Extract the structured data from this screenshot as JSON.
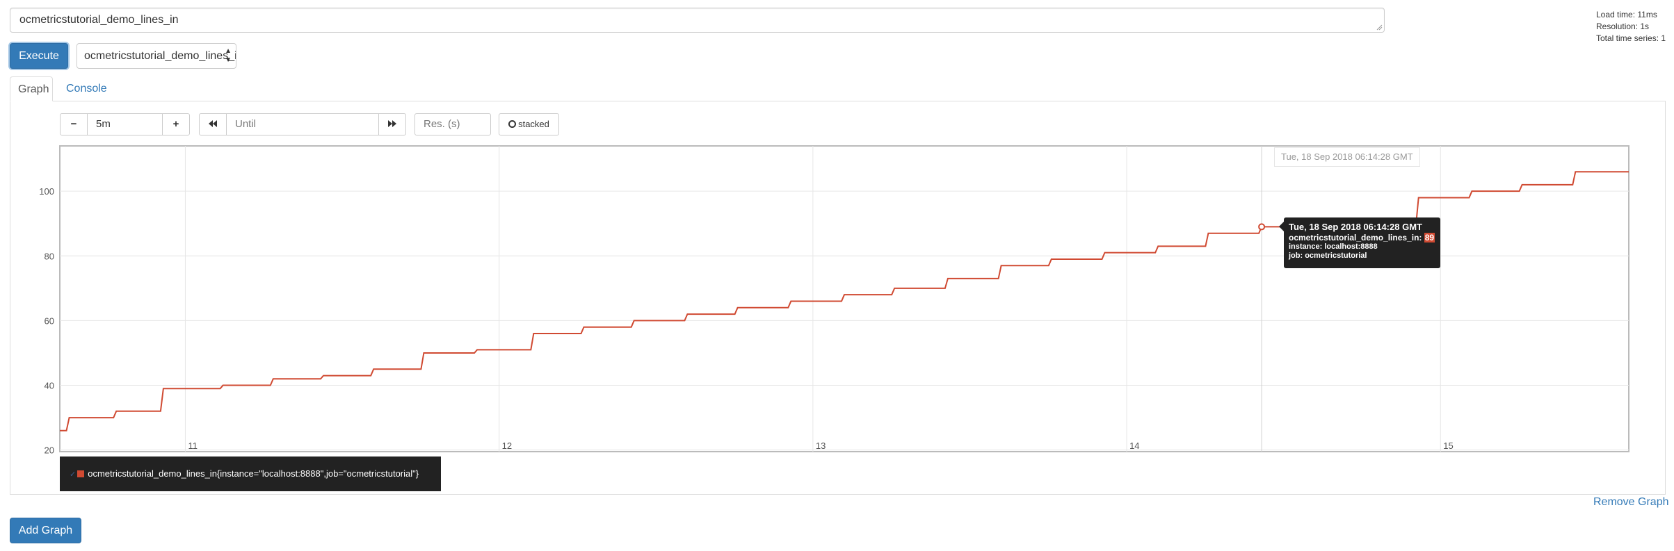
{
  "query": {
    "expression": "ocmetricstutorial_demo_lines_in"
  },
  "stats": {
    "load_time": "Load time: 11ms",
    "resolution": "Resolution: 1s",
    "total_series": "Total time series: 1"
  },
  "toolbar": {
    "execute_label": "Execute",
    "metric_select_value": "ocmetricstutorial_demo_lines_in"
  },
  "tabs": [
    {
      "label": "Graph",
      "active": true
    },
    {
      "label": "Console",
      "active": false
    }
  ],
  "graph_controls": {
    "range_minus": "−",
    "range_value": "5m",
    "range_plus": "+",
    "until_placeholder": "Until",
    "res_placeholder": "Res. (s)",
    "stacked_label": "stacked"
  },
  "hover": {
    "x_label": "Tue, 18 Sep 2018 06:14:28 GMT",
    "tooltip_time": "Tue, 18 Sep 2018 06:14:28 GMT",
    "tooltip_series": "ocmetricstutorial_demo_lines_in:",
    "tooltip_value": "89",
    "tooltip_instance": "instance: localhost:8888",
    "tooltip_job": "job: ocmetricstutorial"
  },
  "legend": {
    "label": "ocmetricstutorial_demo_lines_in{instance=\"localhost:8888\",job=\"ocmetricstutorial\"}"
  },
  "links": {
    "remove_graph": "Remove Graph"
  },
  "footer": {
    "add_graph_label": "Add Graph"
  },
  "colors": {
    "series": "#d04a32",
    "primary": "#337ab7",
    "tooltip_bg": "#222222"
  },
  "chart_data": {
    "type": "line",
    "x_ticks": [
      "11",
      "12",
      "13",
      "14",
      "15"
    ],
    "y_ticks": [
      20,
      40,
      60,
      80,
      100
    ],
    "ylim": [
      19.5,
      114
    ],
    "xlim": [
      10.6,
      15.6
    ],
    "grid": true,
    "series": [
      {
        "name": "ocmetricstutorial_demo_lines_in{instance=\"localhost:8888\",job=\"ocmetricstutorial\"}",
        "color": "#d04a32",
        "points": [
          [
            10.6,
            26
          ],
          [
            10.63,
            30
          ],
          [
            10.78,
            32
          ],
          [
            10.93,
            39
          ],
          [
            11.12,
            40
          ],
          [
            11.28,
            42
          ],
          [
            11.44,
            43
          ],
          [
            11.6,
            45
          ],
          [
            11.76,
            50
          ],
          [
            11.93,
            51
          ],
          [
            12.11,
            56
          ],
          [
            12.27,
            58
          ],
          [
            12.43,
            60
          ],
          [
            12.6,
            62
          ],
          [
            12.76,
            64
          ],
          [
            12.93,
            66
          ],
          [
            13.1,
            68
          ],
          [
            13.26,
            70
          ],
          [
            13.43,
            73
          ],
          [
            13.6,
            77
          ],
          [
            13.76,
            79
          ],
          [
            13.93,
            81
          ],
          [
            14.1,
            83
          ],
          [
            14.26,
            87
          ],
          [
            14.43,
            89
          ],
          [
            14.93,
            98
          ],
          [
            15.1,
            100
          ],
          [
            15.26,
            102
          ],
          [
            15.43,
            106
          ],
          [
            15.6,
            106
          ]
        ]
      }
    ]
  }
}
